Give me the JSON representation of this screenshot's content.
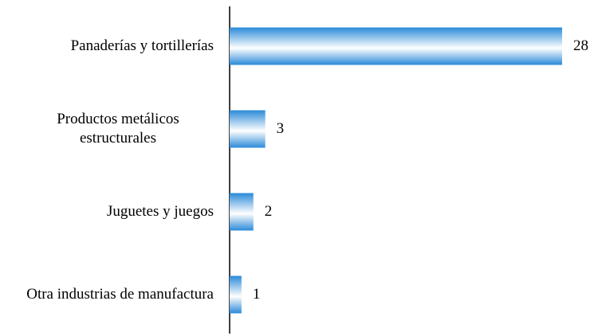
{
  "chart_data": {
    "type": "bar",
    "orientation": "horizontal",
    "categories": [
      "Panaderías y tortillerías",
      "Productos metálicos estructurales",
      "Juguetes y juegos",
      "Otra industrias de manufactura"
    ],
    "values": [
      28,
      3,
      2,
      1
    ],
    "color": "#2a8ad8"
  }
}
